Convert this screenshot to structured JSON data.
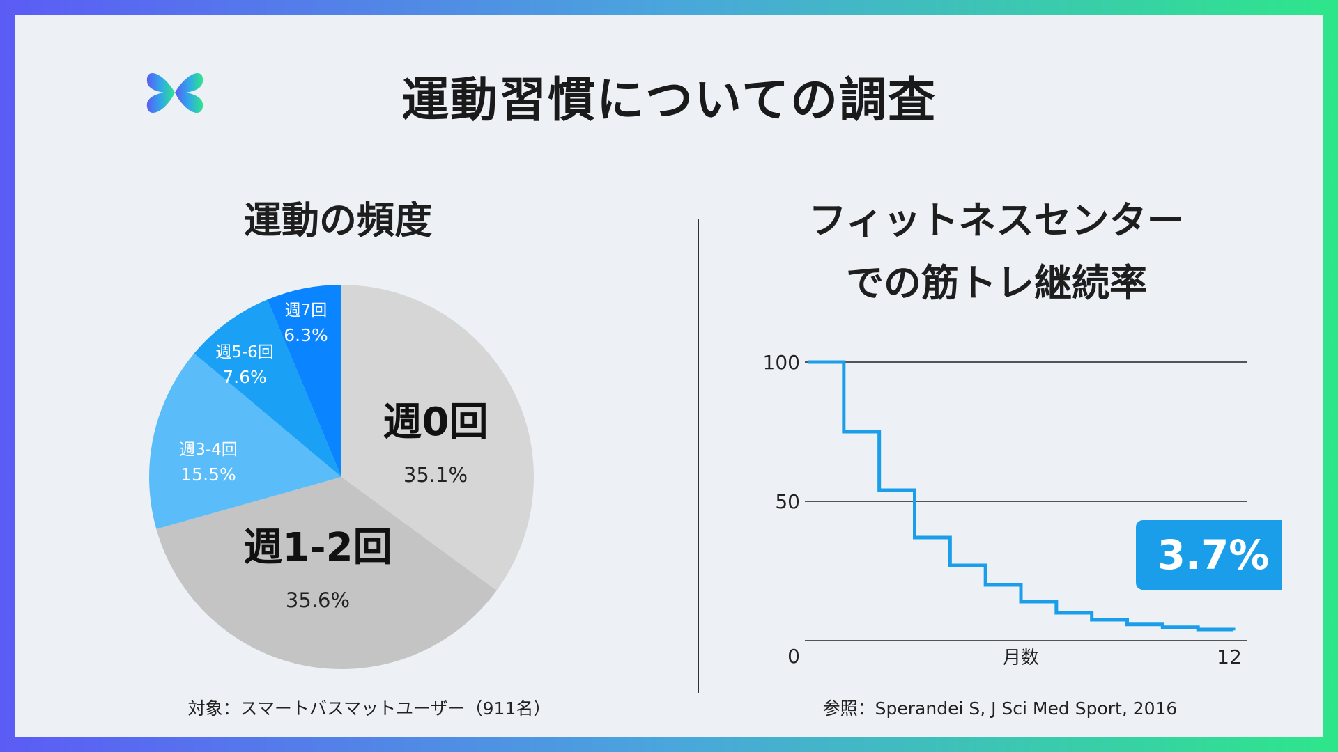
{
  "header": {
    "title": "運動習慣についての調査",
    "logo_icon": "butterfly-logo-icon"
  },
  "left_panel": {
    "title": "運動の頻度",
    "footnote": "対象：スマートバスマットユーザー（911名）"
  },
  "right_panel": {
    "title_line1": "フィットネスセンター",
    "title_line2": "での筋トレ継続率",
    "footnote": "参照：Sperandei S, J Sci Med Sport, 2016",
    "highlight_value": "3.7%"
  },
  "colors": {
    "week0": "#d6d6d6",
    "week1_2": "#c4c4c4",
    "week3_4": "#5bbcfa",
    "week5_6": "#1aa0f5",
    "week7": "#0a84ff",
    "line": "#1a9eea",
    "badge": "#1a9eea"
  },
  "chart_data": [
    {
      "type": "pie",
      "title": "運動の頻度",
      "slices": [
        {
          "label": "週0回",
          "value": 35.1,
          "display": "35.1%"
        },
        {
          "label": "週1-2回",
          "value": 35.6,
          "display": "35.6%"
        },
        {
          "label": "週3-4回",
          "value": 15.5,
          "display": "15.5%"
        },
        {
          "label": "週5-6回",
          "value": 7.6,
          "display": "7.6%"
        },
        {
          "label": "週7回",
          "value": 6.3,
          "display": "6.3%"
        }
      ]
    },
    {
      "type": "line",
      "title": "フィットネスセンターでの筋トレ継続率",
      "xlabel": "月数",
      "ylabel": "",
      "xlim": [
        0,
        12
      ],
      "ylim": [
        0,
        100
      ],
      "yticks": [
        "0",
        "50",
        "100"
      ],
      "xtick_end": "12",
      "step": true,
      "series": [
        {
          "name": "継続率",
          "x": [
            0,
            1,
            2,
            3,
            4,
            5,
            6,
            7,
            8,
            9,
            10,
            11,
            12
          ],
          "values": [
            100,
            75,
            54,
            37,
            27,
            20,
            14,
            10,
            7.5,
            5.8,
            4.8,
            4.0,
            3.7
          ]
        }
      ],
      "annotation": "3.7%"
    }
  ]
}
